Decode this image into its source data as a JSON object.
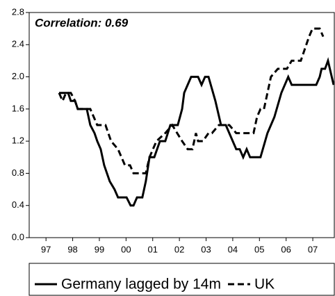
{
  "chart_data": {
    "type": "line",
    "annotation": "Correlation:  0.69",
    "xlim": [
      1996.87,
      2008.28
    ],
    "ylim": [
      0,
      2.8
    ],
    "xticks": [
      {
        "value": 1997.5,
        "label": "97"
      },
      {
        "value": 1998.5,
        "label": "98"
      },
      {
        "value": 1999.5,
        "label": "99"
      },
      {
        "value": 2000.5,
        "label": "00"
      },
      {
        "value": 2001.5,
        "label": "01"
      },
      {
        "value": 2002.5,
        "label": "02"
      },
      {
        "value": 2003.5,
        "label": "03"
      },
      {
        "value": 2004.5,
        "label": "04"
      },
      {
        "value": 2005.5,
        "label": "05"
      },
      {
        "value": 2006.5,
        "label": "06"
      },
      {
        "value": 2007.5,
        "label": "07"
      }
    ],
    "yticks": [
      {
        "value": 0,
        "label": "0.0"
      },
      0.4,
      0.8,
      1.2,
      1.6,
      {
        "value": 2,
        "label": "2.0"
      },
      2.4,
      2.8
    ],
    "series": [
      {
        "name": "Germany lagged by 14m",
        "color": "#000000",
        "dash": "solid",
        "x": [
          1997.99,
          1998.33,
          1998.43,
          1998.59,
          1998.69,
          1999.03,
          1999.16,
          1999.32,
          1999.42,
          1999.55,
          1999.68,
          1999.89,
          2000.07,
          2000.2,
          2000.52,
          2000.67,
          2000.78,
          2000.91,
          2001.11,
          2001.24,
          2001.38,
          2001.56,
          2001.77,
          2001.97,
          2002.16,
          2002.44,
          2002.6,
          2002.68,
          2002.81,
          2002.94,
          2003.2,
          2003.33,
          2003.46,
          2003.59,
          2003.85,
          2004.06,
          2004.24,
          2004.37,
          2004.63,
          2004.76,
          2004.89,
          2005.02,
          2005.15,
          2005.54,
          2005.8,
          2006.06,
          2006.32,
          2006.58,
          2006.71,
          2007.63,
          2007.76,
          2007.83,
          2007.96,
          2008.07,
          2008.28
        ],
        "values": [
          1.8,
          1.8,
          1.7,
          1.7,
          1.6,
          1.6,
          1.4,
          1.3,
          1.2,
          1.1,
          0.9,
          0.7,
          0.6,
          0.5,
          0.5,
          0.4,
          0.4,
          0.5,
          0.5,
          0.7,
          1.0,
          1.0,
          1.2,
          1.2,
          1.4,
          1.4,
          1.6,
          1.8,
          1.9,
          2.0,
          2.0,
          1.9,
          2.0,
          2.0,
          1.7,
          1.4,
          1.4,
          1.3,
          1.1,
          1.1,
          1.0,
          1.1,
          1.0,
          1.0,
          1.3,
          1.5,
          1.8,
          2.0,
          1.9,
          1.9,
          2.0,
          2.1,
          2.1,
          2.2,
          1.9
        ]
      },
      {
        "name": "UK",
        "color": "#000000",
        "dash": "dashed",
        "x": [
          1997.99,
          1998.12,
          1998.25,
          1998.43,
          1998.59,
          1998.69,
          1999.16,
          1999.29,
          1999.42,
          1999.73,
          1999.94,
          2000.2,
          2000.33,
          2000.46,
          2000.65,
          2000.78,
          2001.24,
          2001.38,
          2001.64,
          2001.97,
          2002.23,
          2002.6,
          2002.81,
          2002.99,
          2003.12,
          2003.2,
          2003.38,
          2003.59,
          2003.72,
          2003.98,
          2004.37,
          2004.63,
          2005.28,
          2005.41,
          2005.54,
          2005.67,
          2005.93,
          2006.19,
          2006.53,
          2006.71,
          2007.05,
          2007.36,
          2007.49,
          2007.76,
          2007.89
        ],
        "values": [
          1.8,
          1.7,
          1.8,
          1.8,
          1.7,
          1.6,
          1.6,
          1.5,
          1.4,
          1.4,
          1.2,
          1.1,
          1.0,
          0.9,
          0.9,
          0.8,
          0.8,
          1.0,
          1.2,
          1.3,
          1.4,
          1.2,
          1.1,
          1.1,
          1.3,
          1.2,
          1.2,
          1.3,
          1.3,
          1.4,
          1.4,
          1.3,
          1.3,
          1.5,
          1.6,
          1.6,
          2.0,
          2.1,
          2.1,
          2.2,
          2.2,
          2.5,
          2.6,
          2.6,
          2.5
        ]
      }
    ]
  }
}
